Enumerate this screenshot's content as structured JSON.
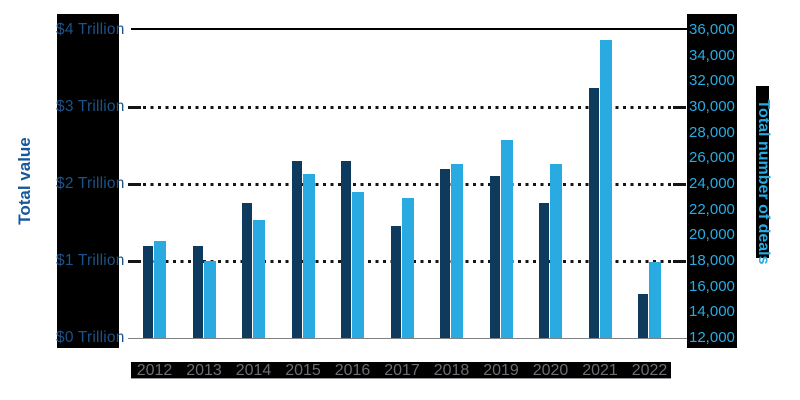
{
  "chart_data": {
    "type": "bar",
    "title": "",
    "categories": [
      "2012",
      "2013",
      "2014",
      "2015",
      "2016",
      "2017",
      "2018",
      "2019",
      "2020",
      "2021",
      "2022"
    ],
    "series": [
      {
        "name": "Total value",
        "axis": "left",
        "unit": "trillion USD",
        "color": "#0E3A5D",
        "values": [
          1.2,
          1.2,
          1.75,
          2.3,
          2.3,
          1.45,
          2.2,
          2.1,
          1.75,
          3.25,
          0.57
        ]
      },
      {
        "name": "Total number of deals",
        "axis": "right",
        "unit": "deals",
        "color": "#29ABE2",
        "values": [
          19600,
          18000,
          21200,
          24800,
          23400,
          22900,
          25600,
          27400,
          25600,
          35200,
          17900
        ]
      }
    ],
    "left_axis": {
      "title": "Total value",
      "tick_labels": [
        "$4 Trillion",
        "$3 Trillion",
        "$2 Trillion",
        "$1 Trillion",
        "$0 Trillion"
      ],
      "min": 0,
      "max": 4
    },
    "right_axis": {
      "title": "Total number of deals",
      "tick_labels": [
        "36,000",
        "34,000",
        "32,000",
        "30,000",
        "28,000",
        "26,000",
        "24,000",
        "22,000",
        "20,000",
        "18,000",
        "16,000",
        "14,000",
        "12,000"
      ],
      "min": 12000,
      "max": 36000
    },
    "grid": "horizontal dotted lines at $1T/18,000, $2T/24,000, $3T/30,000; solid line at top and bottom",
    "legend": "none"
  },
  "colors": {
    "value_bar": "#0E3A5D",
    "deals_bar": "#29ABE2",
    "left_tick_text": "#1B5389",
    "left_title_text": "#17579B",
    "right_text": "#29ABE2",
    "year_text": "#6D6E71",
    "label_background": "#000000",
    "gridline": "#141414",
    "baseline": "#808285"
  }
}
